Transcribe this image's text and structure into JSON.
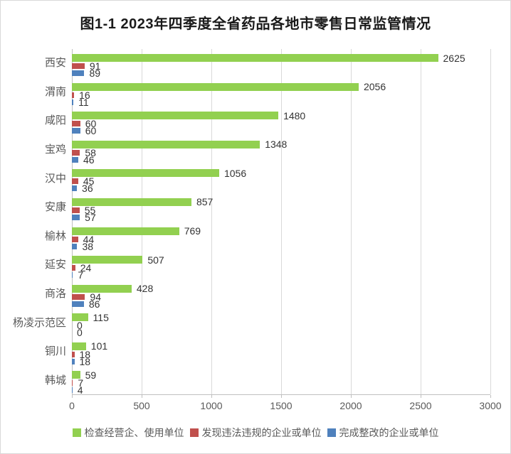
{
  "chart_data": {
    "type": "bar",
    "orientation": "horizontal",
    "title": "图1-1 2023年四季度全省药品各地市零售日常监管情况",
    "categories": [
      "西安",
      "渭南",
      "咸阳",
      "宝鸡",
      "汉中",
      "安康",
      "榆林",
      "延安",
      "商洛",
      "杨凌示范区",
      "铜川",
      "韩城"
    ],
    "series": [
      {
        "name": "检查经营企、使用单位",
        "color": "#92d050",
        "values": [
          2625,
          2056,
          1480,
          1348,
          1056,
          857,
          769,
          507,
          428,
          115,
          101,
          59
        ]
      },
      {
        "name": "发现违法违规的企业或单位",
        "color": "#c0504d",
        "values": [
          91,
          16,
          60,
          58,
          45,
          55,
          44,
          24,
          94,
          0,
          18,
          7
        ]
      },
      {
        "name": "完成整改的企业或单位",
        "color": "#4f81bd",
        "values": [
          89,
          11,
          60,
          46,
          36,
          57,
          38,
          7,
          86,
          0,
          18,
          4
        ]
      }
    ],
    "xlim": [
      0,
      3000
    ],
    "x_ticks": [
      0,
      500,
      1000,
      1500,
      2000,
      2500,
      3000
    ],
    "grid": true,
    "legend_position": "bottom",
    "data_labels": true
  },
  "colors": {
    "series_green": "#92d050",
    "series_red": "#c0504d",
    "series_blue": "#4f81bd",
    "gridline": "#d9d9d9",
    "axis_line": "#bfbfbf",
    "axis_text": "#595959",
    "value_text": "#333333",
    "title_text": "#1a1a1a",
    "frame_border": "#d9d9d9",
    "background": "#ffffff"
  }
}
